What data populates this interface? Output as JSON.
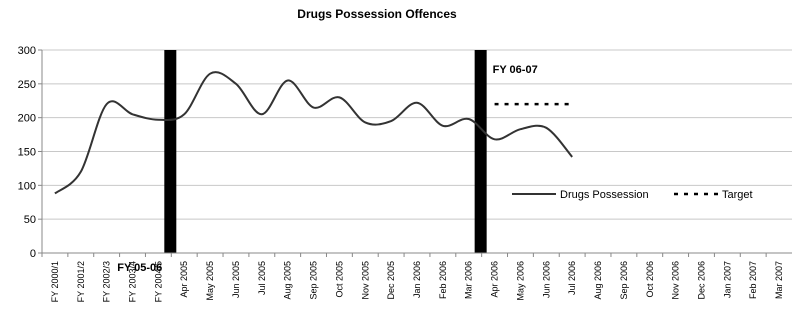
{
  "chart_data": {
    "type": "line",
    "title": "Drugs Possession Offences",
    "ylim": [
      0,
      300
    ],
    "yticks": [
      0,
      50,
      100,
      150,
      200,
      250,
      300
    ],
    "grid": true,
    "legend_position": "right",
    "categories": [
      "FY 2000/1",
      "FY 2001/2",
      "FY 2002/3",
      "FY 2003/4",
      "FY 2004/5",
      "Apr 2005",
      "May 2005",
      "Jun 2005",
      "Jul 2005",
      "Aug 2005",
      "Sep 2005",
      "Oct 2005",
      "Nov 2005",
      "Dec 2005",
      "Jan 2006",
      "Feb 2006",
      "Mar 2006",
      "Apr 2006",
      "May 2006",
      "Jun 2006",
      "Jul 2006",
      "Aug 2006",
      "Sep 2006",
      "Oct 2006",
      "Nov 2006",
      "Dec 2006",
      "Jan 2007",
      "Feb 2007",
      "Mar 2007"
    ],
    "series": [
      {
        "name": "Drugs Possession",
        "style": "solid",
        "color": "#333333",
        "values": [
          88,
          120,
          220,
          205,
          197,
          205,
          265,
          250,
          205,
          255,
          215,
          230,
          193,
          195,
          222,
          188,
          198,
          168,
          183,
          185,
          142,
          null,
          null,
          null,
          null,
          null,
          null,
          null,
          null
        ]
      },
      {
        "name": "Target",
        "style": "dotted",
        "color": "#000000",
        "values": [
          null,
          null,
          null,
          null,
          null,
          null,
          null,
          null,
          null,
          null,
          null,
          null,
          null,
          null,
          null,
          null,
          null,
          220,
          220,
          220,
          220,
          null,
          null,
          null,
          null,
          null,
          null,
          null,
          null
        ]
      }
    ],
    "markers": [
      {
        "at": "Apr 2005",
        "label": "FY 05-06"
      },
      {
        "at": "Apr 2006",
        "label": "FY 06-07"
      }
    ]
  }
}
